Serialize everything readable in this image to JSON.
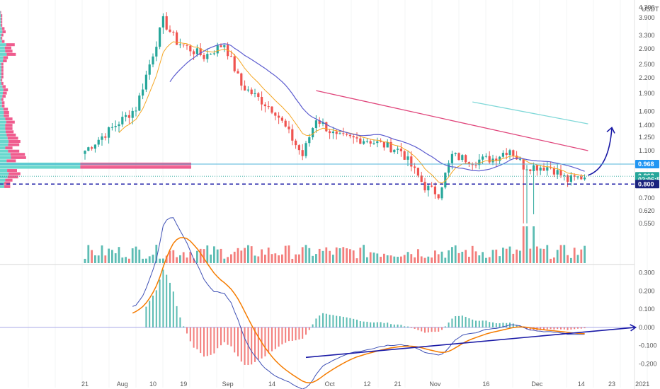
{
  "currency": "USDT",
  "colors": {
    "up": "#26a69a",
    "down": "#ef5350",
    "vp_up": "#4dd0c4",
    "vp_down": "#ec407a",
    "ema_fast": "#f5a623",
    "ma_mid": "#5c5ccf",
    "ma_slow": "#e0457b",
    "aux_line": "#7fd8d8",
    "macd": "#3f51b5",
    "signal": "#f57c00",
    "support": "#1a1aa6",
    "hline": "#4fb3d9",
    "tag_blue": "#2196f3",
    "tag_navy": "#1a237e",
    "tag_green": "#26a69a"
  },
  "chart_data": [
    {
      "type": "candlestick",
      "title": "",
      "price_scale": "log",
      "ylim": [
        0.68,
        4.3
      ],
      "y_ticks": [
        "4.300",
        "3.900",
        "3.300",
        "2.900",
        "2.500",
        "2.200",
        "1.900",
        "1.600",
        "1.400",
        "1.250",
        "1.100",
        "0.968",
        "0.862",
        "0.800",
        "0.700",
        "0.620",
        "0.550"
      ],
      "x_ticks": [
        "21",
        "Aug",
        "10",
        "19",
        "Sep",
        "14",
        "Oct",
        "12",
        "21",
        "Nov",
        "16",
        "Dec",
        "14",
        "23",
        "2021"
      ],
      "anchors": [
        {
          "date": "2020-07-21",
          "close": 1.1
        },
        {
          "date": "2020-08-05",
          "close": 1.65
        },
        {
          "date": "2020-08-13",
          "close": 3.8
        },
        {
          "date": "2020-08-17",
          "close": 3.1
        },
        {
          "date": "2020-08-25",
          "close": 2.7
        },
        {
          "date": "2020-08-31",
          "close": 3.05
        },
        {
          "date": "2020-09-05",
          "close": 2.05
        },
        {
          "date": "2020-09-15",
          "close": 1.6
        },
        {
          "date": "2020-09-23",
          "close": 1.05
        },
        {
          "date": "2020-09-27",
          "close": 1.5
        },
        {
          "date": "2020-10-03",
          "close": 1.25
        },
        {
          "date": "2020-10-12",
          "close": 1.22
        },
        {
          "date": "2020-10-22",
          "close": 1.1
        },
        {
          "date": "2020-10-29",
          "close": 0.78
        },
        {
          "date": "2020-11-02",
          "close": 0.73
        },
        {
          "date": "2020-11-06",
          "close": 1.05
        },
        {
          "date": "2020-11-12",
          "close": 1.0
        },
        {
          "date": "2020-11-18",
          "close": 1.02
        },
        {
          "date": "2020-11-23",
          "close": 1.12
        },
        {
          "date": "2020-11-27",
          "close": 0.95
        },
        {
          "date": "2020-12-05",
          "close": 0.94
        },
        {
          "date": "2020-12-10",
          "close": 0.83
        },
        {
          "date": "2020-12-15",
          "close": 0.862
        }
      ],
      "horizontal_levels": [
        {
          "value": 0.968,
          "label": "0.968",
          "style": "solid"
        },
        {
          "value": 0.8,
          "label": "0.800",
          "style": "dashed"
        }
      ],
      "price_tags": [
        {
          "text": "0.968",
          "value": 0.968,
          "color": "tag_blue"
        },
        {
          "text": "0.862",
          "value": 0.862,
          "color": "tag_green"
        },
        {
          "text": "02:06:55",
          "value": 0.835,
          "color": "tag_green"
        },
        {
          "text": "0.800",
          "value": 0.8,
          "color": "tag_navy"
        }
      ],
      "price_labels_grey": [
        {
          "text": "4.300",
          "value": 4.3
        },
        {
          "text": "3.900",
          "value": 3.9
        },
        {
          "text": "3.300",
          "value": 3.3
        },
        {
          "text": "2.900",
          "value": 2.9
        },
        {
          "text": "2.500",
          "value": 2.5
        },
        {
          "text": "2.200",
          "value": 2.2
        },
        {
          "text": "1.900",
          "value": 1.9
        },
        {
          "text": "1.600",
          "value": 1.6
        },
        {
          "text": "1.400",
          "value": 1.4
        },
        {
          "text": "1.250",
          "value": 1.25
        },
        {
          "text": "1.100",
          "value": 1.1
        },
        {
          "text": "0.700",
          "value": 0.7
        },
        {
          "text": "0.620",
          "value": 0.62
        },
        {
          "text": "0.550",
          "value": 0.55
        }
      ],
      "drawings": [
        {
          "kind": "line",
          "color": "ma_slow",
          "from": {
            "date": "2020-09-27",
            "value": 1.95
          },
          "to": {
            "date": "2020-12-16",
            "value": 1.1
          }
        },
        {
          "kind": "line",
          "color": "aux_line",
          "from": {
            "date": "2020-11-12",
            "value": 1.75
          },
          "to": {
            "date": "2020-12-16",
            "value": 1.42
          }
        },
        {
          "kind": "curved_arrow",
          "color": "support",
          "from": {
            "date": "2020-12-16",
            "value": 0.87
          },
          "to": {
            "date": "2020-12-23",
            "value": 1.37
          }
        }
      ]
    },
    {
      "type": "bar",
      "title": "volume",
      "note": "volume bars follow candle direction"
    },
    {
      "type": "macd",
      "ylim": [
        -0.3,
        0.33
      ],
      "y_ticks": [
        "0.300",
        "0.200",
        "0.100",
        "0.000",
        "-0.100",
        "-0.200"
      ],
      "zero_label": "0.000",
      "trendline": {
        "from": {
          "date": "2020-09-24",
          "value": -0.165
        },
        "to": {
          "date": "2020-12-30",
          "value": 0.0
        }
      }
    }
  ]
}
